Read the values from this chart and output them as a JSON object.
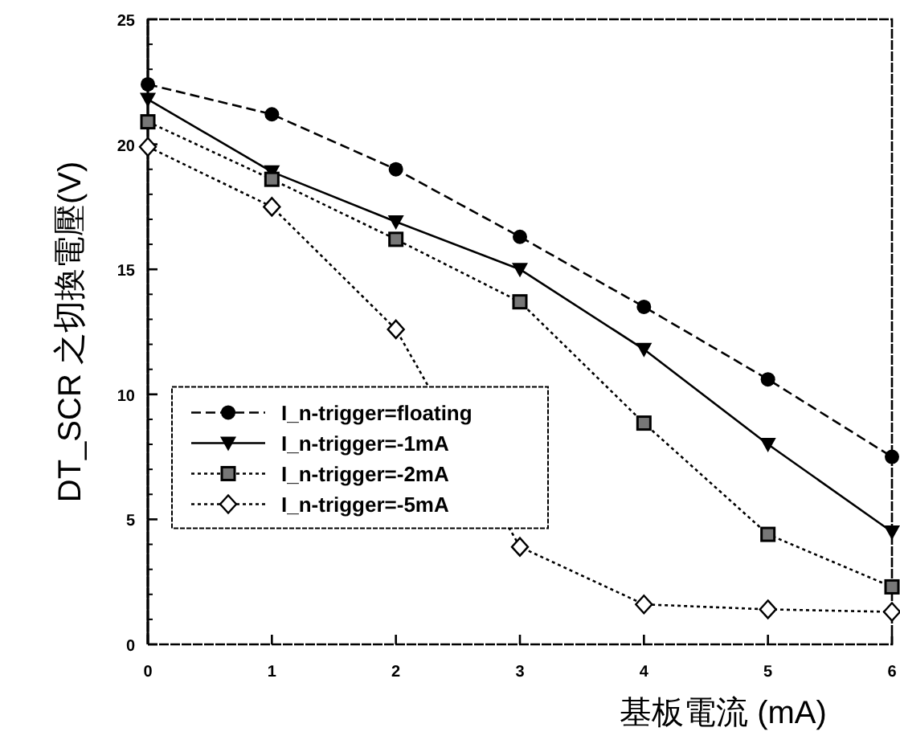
{
  "chart_data": {
    "type": "line",
    "xlabel": "基板電流 (mA)",
    "ylabel": "DT_SCR 之切換電壓(V)",
    "x": [
      0,
      1,
      2,
      3,
      4,
      5,
      6
    ],
    "xlim": [
      0,
      6
    ],
    "xticks": [
      0,
      1,
      2,
      3,
      4,
      5,
      6
    ],
    "ylim": [
      0,
      25
    ],
    "yticks": [
      0,
      5,
      10,
      15,
      20,
      25
    ],
    "grid": false,
    "legend": "left",
    "series": [
      {
        "name": "I_n-trigger=floating",
        "color": "#000000",
        "marker": "circle",
        "line_style": "dashed",
        "values": [
          22.4,
          21.2,
          19.0,
          16.3,
          13.5,
          10.6,
          7.5
        ]
      },
      {
        "name": "I_n-trigger=-1mA",
        "color": "#000000",
        "marker": "triangle",
        "line_style": "solid",
        "values": [
          21.8,
          18.9,
          16.9,
          15.0,
          11.8,
          8.0,
          4.5
        ]
      },
      {
        "name": "I_n-trigger=-2mA",
        "color": "#000000",
        "marker": "square",
        "line_style": "dotted",
        "values": [
          20.9,
          18.6,
          16.2,
          13.7,
          8.85,
          4.4,
          2.3
        ]
      },
      {
        "name": "I_n-trigger=-5mA",
        "color": "#000000",
        "marker": "diamond",
        "line_style": "dotted",
        "values": [
          19.9,
          17.5,
          12.6,
          3.9,
          1.6,
          1.4,
          1.3
        ]
      }
    ]
  }
}
